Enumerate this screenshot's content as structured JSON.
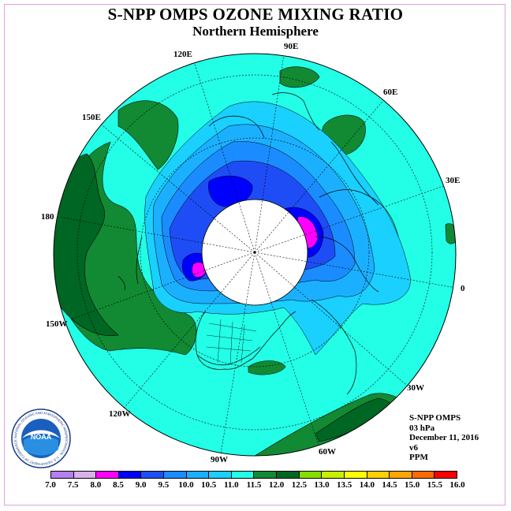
{
  "header": {
    "title": "S-NPP OMPS OZONE MIXING RATIO",
    "subtitle": "Northern Hemisphere"
  },
  "info": {
    "instrument": "S-NPP OMPS",
    "level": "03 hPa",
    "date": "December 11, 2016",
    "version": "v6",
    "units": "PPM"
  },
  "longitude_labels": [
    "90E",
    "60E",
    "30E",
    "0",
    "30W",
    "60W",
    "90W",
    "120W",
    "150W",
    "180",
    "150E",
    "120E"
  ],
  "legend": {
    "ticks": [
      "7.0",
      "7.5",
      "8.0",
      "8.5",
      "9.0",
      "9.5",
      "10.0",
      "10.5",
      "11.0",
      "11.5",
      "12.0",
      "12.5",
      "13.0",
      "13.5",
      "14.0",
      "14.5",
      "15.0",
      "15.5",
      "16.0"
    ],
    "colors": [
      "#b57ff0",
      "#dab0ef",
      "#ff00ff",
      "#0000ff",
      "#1e4df5",
      "#1a8cff",
      "#1bb0ff",
      "#19d0ff",
      "#22ffe6",
      "#118a33",
      "#006624",
      "#88dd00",
      "#c8ee00",
      "#ffff00",
      "#ffd000",
      "#ffa500",
      "#ff6a00",
      "#ff0000",
      "#8b4513"
    ]
  },
  "colors": {
    "background_field": "#22ffe6",
    "polar_night": "#ffffff"
  },
  "logo": {
    "name": "NOAA",
    "ring_text": "NATIONAL OCEANIC AND ATMOSPHERIC ADMINISTRATION · U.S. DEPARTMENT OF COMMERCE"
  }
}
